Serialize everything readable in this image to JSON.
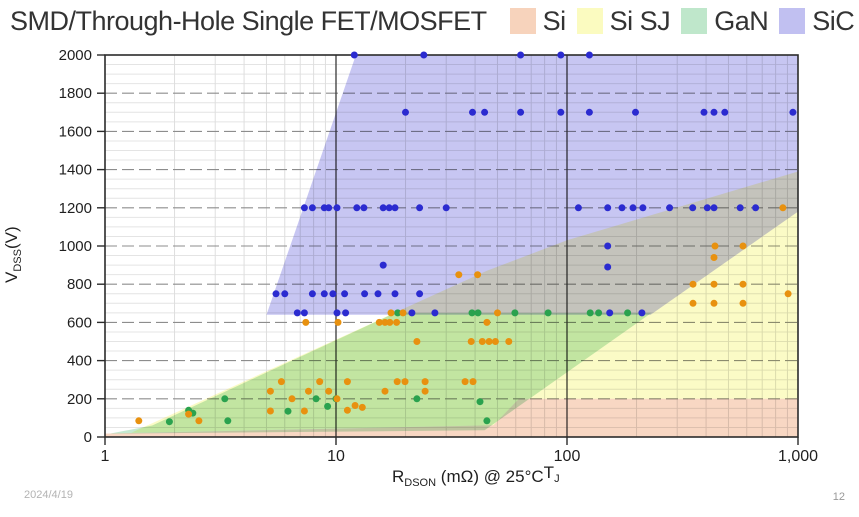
{
  "title": "SMD/Through-Hole Single FET/MOSFET",
  "legend": [
    {
      "label": "Si",
      "color": "#f7d3bc"
    },
    {
      "label": "Si SJ",
      "color": "#fbfbc0"
    },
    {
      "label": "GaN",
      "color": "#bfe7cb"
    },
    {
      "label": "SiC",
      "color": "#c1c0f1"
    }
  ],
  "slide": {
    "date": "2024/4/19",
    "page": "12"
  },
  "chart_data": {
    "type": "scatter",
    "title": "SMD/Through-Hole Single FET/MOSFET",
    "xlabel": "R_DSON (mΩ) @ 25°CT_J",
    "ylabel": "V_DSS(V)",
    "xlabel_rich": [
      {
        "t": "R"
      },
      {
        "s": "DSON"
      },
      {
        "t": " (mΩ) @ 25°C"
      },
      {
        "t": "T"
      },
      {
        "s": "J"
      }
    ],
    "ylabel_rich": [
      {
        "t": "V"
      },
      {
        "s": "DSS"
      },
      {
        "t": "(V)"
      }
    ],
    "x_axis": {
      "scale": "log",
      "min": 1,
      "max": 1000,
      "tick_values": [
        1,
        10,
        100,
        1000
      ],
      "tick_labels": [
        "1",
        "10",
        "100",
        "1,000"
      ]
    },
    "y_axis": {
      "min": 0,
      "max": 2000,
      "major_step": 200,
      "minor_step": 50,
      "tick_labels": [
        "0",
        "200",
        "400",
        "600",
        "800",
        "1000",
        "1200",
        "1400",
        "1600",
        "1800",
        "2000"
      ]
    },
    "grid": {
      "minor_h_color": "#e4e4e4",
      "major_h_color": "#8d8d8d",
      "minor_v_color": "#dedede",
      "dark_v_color": "#3a3a3a"
    },
    "regions": [
      {
        "name": "Si",
        "color": "#f7d3bc",
        "polygon": [
          [
            1,
            0
          ],
          [
            1,
            18
          ],
          [
            48,
            62
          ],
          [
            62,
            200
          ],
          [
            1000,
            200
          ],
          [
            1000,
            0
          ]
        ]
      },
      {
        "name": "Si SJ",
        "color": "#fbfbc0",
        "polygon": [
          [
            1.3,
            22
          ],
          [
            45,
            870
          ],
          [
            100,
            1030
          ],
          [
            1000,
            1390
          ],
          [
            1000,
            200
          ],
          [
            62,
            200
          ],
          [
            48,
            62
          ]
        ]
      },
      {
        "name": "GaN",
        "color": "#bfe7cb",
        "polygon": [
          [
            1.05,
            18
          ],
          [
            1.6,
            60
          ],
          [
            18,
            650
          ],
          [
            232,
            650
          ],
          [
            44,
            35
          ]
        ]
      },
      {
        "name": "SiC",
        "color": "#c1c0f1",
        "polygon": [
          [
            5,
            640
          ],
          [
            12.2,
            2000
          ],
          [
            1000,
            2000
          ],
          [
            1000,
            1180
          ],
          [
            230,
            640
          ]
        ]
      }
    ],
    "series": [
      {
        "name": "SiC",
        "color": "#2b2bd0",
        "points": [
          [
            12,
            2000
          ],
          [
            24,
            2000
          ],
          [
            63,
            2000
          ],
          [
            94,
            2000
          ],
          [
            125,
            2000
          ],
          [
            20,
            1700
          ],
          [
            39,
            1700
          ],
          [
            44,
            1700
          ],
          [
            63,
            1700
          ],
          [
            94,
            1700
          ],
          [
            125,
            1700
          ],
          [
            198,
            1700
          ],
          [
            392,
            1700
          ],
          [
            433,
            1700
          ],
          [
            482,
            1700
          ],
          [
            950,
            1700
          ],
          [
            7.3,
            1200
          ],
          [
            7.9,
            1200
          ],
          [
            8.9,
            1200
          ],
          [
            9.3,
            1200
          ],
          [
            10.1,
            1200
          ],
          [
            12.3,
            1200
          ],
          [
            13.2,
            1200
          ],
          [
            16,
            1200
          ],
          [
            17,
            1200
          ],
          [
            18,
            1200
          ],
          [
            23,
            1200
          ],
          [
            30,
            1200
          ],
          [
            112,
            1200
          ],
          [
            150,
            1200
          ],
          [
            173,
            1200
          ],
          [
            193,
            1200
          ],
          [
            213,
            1200
          ],
          [
            278,
            1200
          ],
          [
            350,
            1200
          ],
          [
            405,
            1200
          ],
          [
            433,
            1200
          ],
          [
            562,
            1200
          ],
          [
            655,
            1200
          ],
          [
            150,
            1000
          ],
          [
            16,
            900
          ],
          [
            150,
            890
          ],
          [
            5.5,
            750
          ],
          [
            6,
            750
          ],
          [
            7.9,
            750
          ],
          [
            8.9,
            750
          ],
          [
            9.7,
            750
          ],
          [
            10.9,
            750
          ],
          [
            13.3,
            750
          ],
          [
            15.2,
            750
          ],
          [
            18,
            750
          ],
          [
            23,
            750
          ],
          [
            6.8,
            650
          ],
          [
            7.3,
            650
          ],
          [
            10.1,
            650
          ],
          [
            11,
            650
          ],
          [
            21.3,
            650
          ],
          [
            26.8,
            650
          ],
          [
            153,
            650
          ],
          [
            211,
            650
          ]
        ]
      },
      {
        "name": "GaN",
        "color": "#2aa24e",
        "points": [
          [
            18.5,
            650
          ],
          [
            38.8,
            650
          ],
          [
            41.2,
            650
          ],
          [
            59.5,
            650
          ],
          [
            82.8,
            650
          ],
          [
            126,
            650
          ],
          [
            137,
            650
          ],
          [
            183,
            650
          ],
          [
            3.3,
            200
          ],
          [
            8.2,
            200
          ],
          [
            10,
            200
          ],
          [
            22.4,
            200
          ],
          [
            42,
            185
          ],
          [
            1.9,
            80
          ],
          [
            2.3,
            140
          ],
          [
            2.4,
            125
          ],
          [
            3.4,
            85
          ],
          [
            6.2,
            135
          ],
          [
            9.2,
            160
          ],
          [
            45,
            85
          ]
        ]
      },
      {
        "name": "Si / Si SJ",
        "color": "#e8910f",
        "points": [
          [
            1.4,
            85
          ],
          [
            2.55,
            85
          ],
          [
            2.3,
            120
          ],
          [
            5.2,
            136
          ],
          [
            7.3,
            136
          ],
          [
            11.2,
            140
          ],
          [
            12.1,
            165
          ],
          [
            13,
            155
          ],
          [
            6.45,
            200
          ],
          [
            10.1,
            200
          ],
          [
            5.2,
            240
          ],
          [
            7.6,
            240
          ],
          [
            9.3,
            240
          ],
          [
            16.3,
            240
          ],
          [
            24.3,
            240
          ],
          [
            5.8,
            290
          ],
          [
            8.5,
            290
          ],
          [
            11.2,
            290
          ],
          [
            18.4,
            290
          ],
          [
            19.9,
            290
          ],
          [
            24.3,
            290
          ],
          [
            36.2,
            290
          ],
          [
            39.2,
            290
          ],
          [
            22.4,
            500
          ],
          [
            38.5,
            500
          ],
          [
            43,
            500
          ],
          [
            46,
            500
          ],
          [
            49,
            500
          ],
          [
            56,
            500
          ],
          [
            7.4,
            600
          ],
          [
            10.2,
            600
          ],
          [
            15.4,
            600
          ],
          [
            16.3,
            600
          ],
          [
            17.1,
            600
          ],
          [
            18.3,
            600
          ],
          [
            45,
            600
          ],
          [
            17.3,
            650
          ],
          [
            19.5,
            650
          ],
          [
            50,
            650
          ],
          [
            34,
            850
          ],
          [
            41,
            850
          ],
          [
            351,
            700
          ],
          [
            433,
            700
          ],
          [
            578,
            700
          ],
          [
            906,
            750
          ],
          [
            351,
            800
          ],
          [
            433,
            800
          ],
          [
            578,
            800
          ],
          [
            433,
            940
          ],
          [
            437,
            1000
          ],
          [
            578,
            1000
          ],
          [
            860,
            1200
          ]
        ]
      }
    ]
  }
}
